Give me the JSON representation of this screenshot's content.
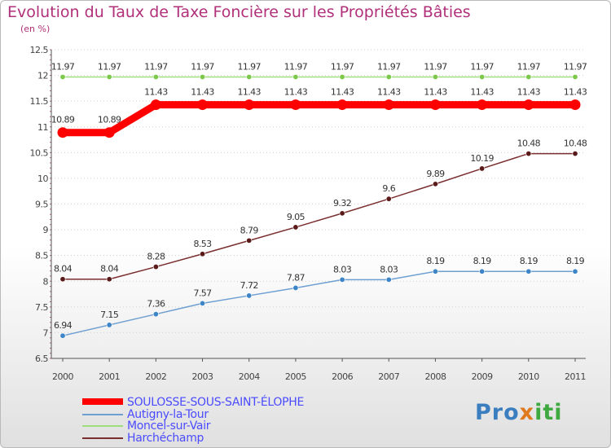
{
  "header": {
    "title": "Evolution du Taux de Taxe Foncière sur les Propriétés Bâties",
    "subtitle": "(en %)"
  },
  "logo": {
    "part1": "Pro",
    "part2": "x",
    "part3": "iti"
  },
  "chart_data": {
    "type": "line",
    "title": "Evolution du Taux de Taxe Foncière sur les Propriétés Bâties",
    "ylabel": "(en %)",
    "xlabel": "",
    "ylim": [
      6.5,
      12.5
    ],
    "yticks": [
      "6.5",
      "7",
      "7.5",
      "8",
      "8.5",
      "9",
      "9.5",
      "10",
      "10.5",
      "11",
      "11.5",
      "12",
      "12.5"
    ],
    "categories": [
      "2000",
      "2001",
      "2002",
      "2003",
      "2004",
      "2005",
      "2006",
      "2007",
      "2008",
      "2009",
      "2010",
      "2011"
    ],
    "grid": "horizontal dotted",
    "legend_position": "bottom",
    "series": [
      {
        "name": "SOULOSSE-SOUS-SAINT-ÉLOPHE",
        "color": "#ff0000",
        "marker": "#ff0000",
        "emphasis": "thick",
        "values": [
          10.89,
          10.89,
          11.43,
          11.43,
          11.43,
          11.43,
          11.43,
          11.43,
          11.43,
          11.43,
          11.43,
          11.43
        ],
        "labels": [
          "10.89",
          "10.89",
          "11.43",
          "11.43",
          "11.43",
          "11.43",
          "11.43",
          "11.43",
          "11.43",
          "11.43",
          "11.43",
          "11.43"
        ]
      },
      {
        "name": "Autigny-la-Tour",
        "color": "#6d9fd1",
        "marker": "#3d85c6",
        "emphasis": "thin",
        "values": [
          6.94,
          7.15,
          7.36,
          7.57,
          7.72,
          7.87,
          8.03,
          8.03,
          8.19,
          8.19,
          8.19,
          8.19
        ],
        "labels": [
          "6.94",
          "7.15",
          "7.36",
          "7.57",
          "7.72",
          "7.87",
          "8.03",
          "8.03",
          "8.19",
          "8.19",
          "8.19",
          "8.19"
        ]
      },
      {
        "name": "Moncel-sur-Vair",
        "color": "#9fde7a",
        "marker": "#7cc84a",
        "emphasis": "thin",
        "values": [
          11.97,
          11.97,
          11.97,
          11.97,
          11.97,
          11.97,
          11.97,
          11.97,
          11.97,
          11.97,
          11.97,
          11.97
        ],
        "labels": [
          "11.97",
          "11.97",
          "11.97",
          "11.97",
          "11.97",
          "11.97",
          "11.97",
          "11.97",
          "11.97",
          "11.97",
          "11.97",
          "11.97"
        ]
      },
      {
        "name": "Harchéchamp",
        "color": "#7a2e2e",
        "marker": "#5a1a1a",
        "emphasis": "thin",
        "values": [
          8.04,
          8.04,
          8.28,
          8.53,
          8.79,
          9.05,
          9.32,
          9.6,
          9.89,
          10.19,
          10.48,
          10.48
        ],
        "labels": [
          "8.04",
          "8.04",
          "8.28",
          "8.53",
          "8.79",
          "9.05",
          "9.32",
          "9.6",
          "9.89",
          "10.19",
          "10.48",
          "10.48"
        ]
      }
    ]
  }
}
